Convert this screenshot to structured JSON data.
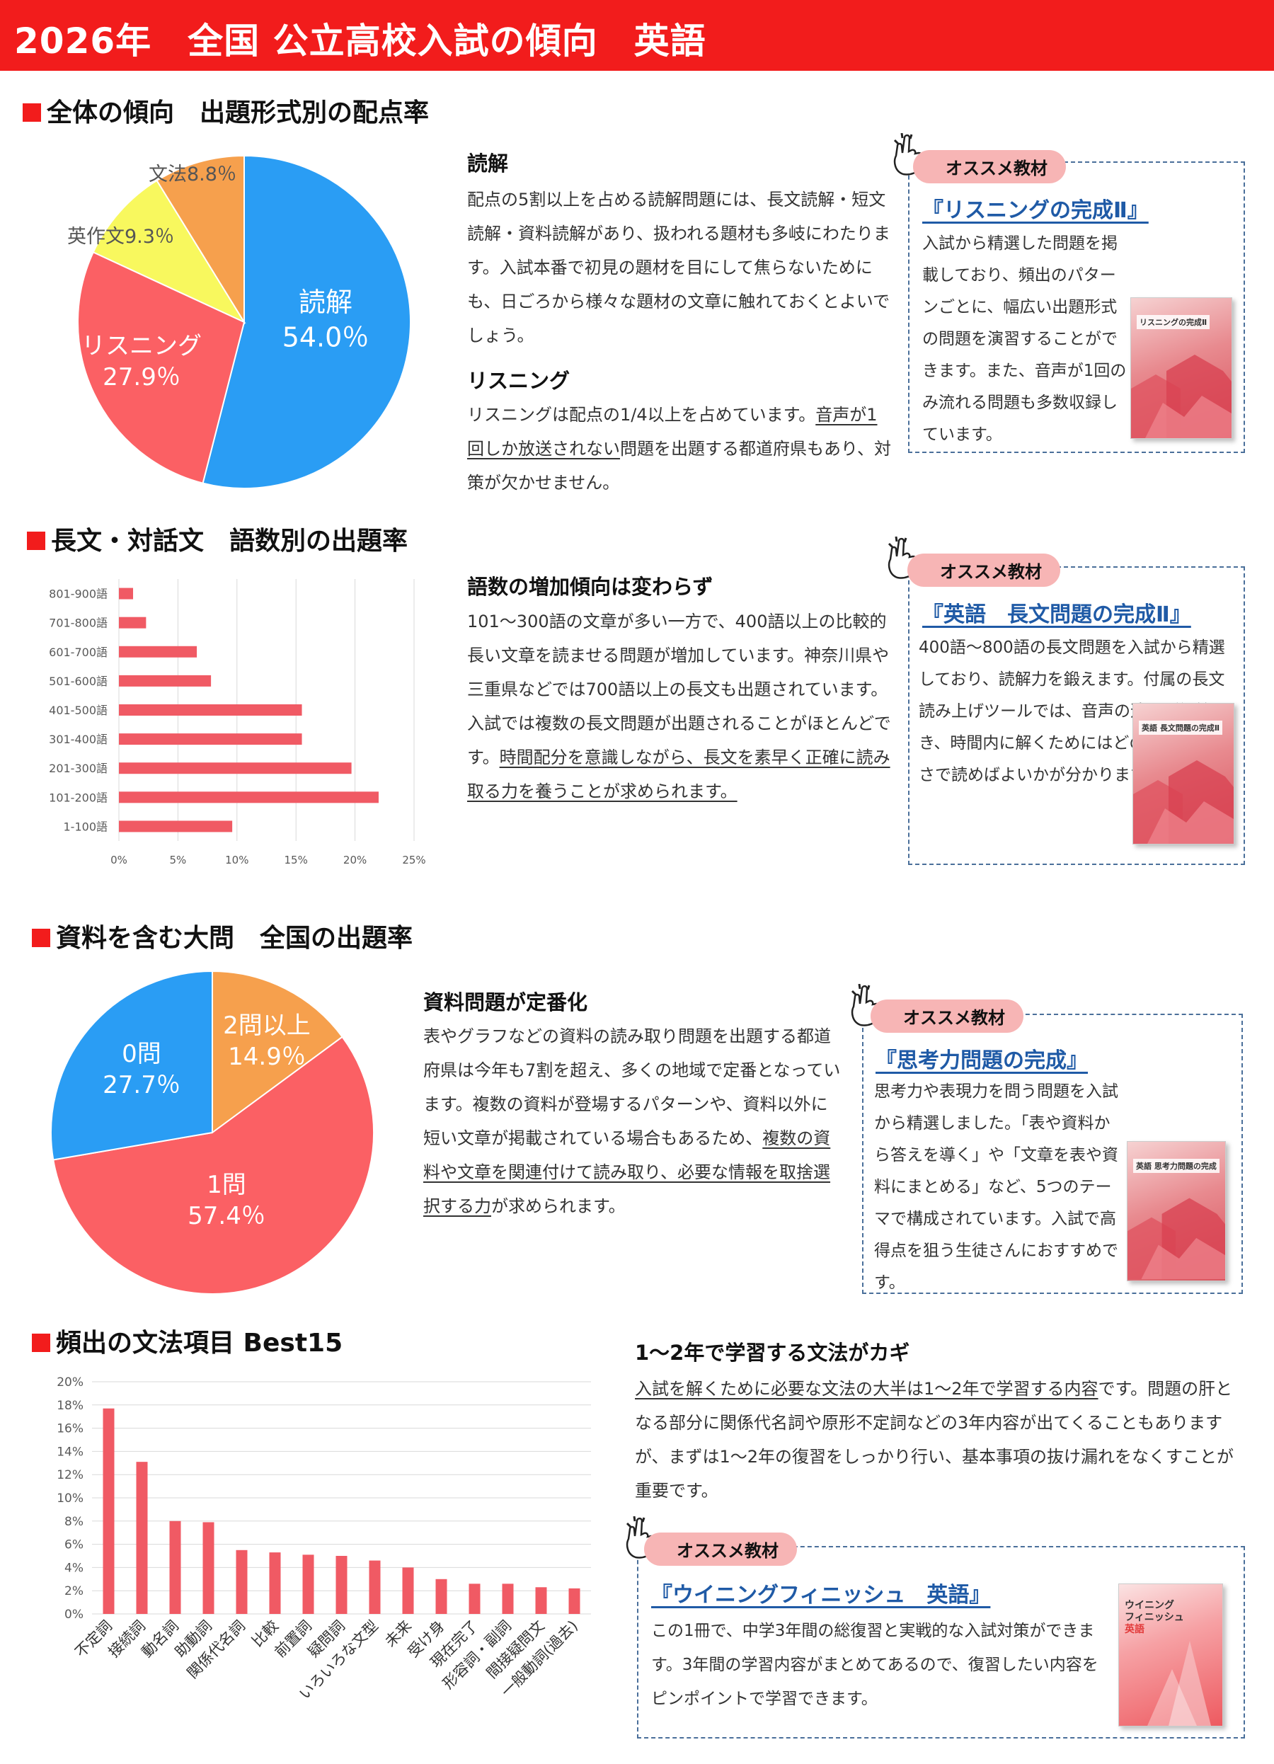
{
  "header": {
    "title": "2026年　全国 公立高校入試の傾向　英語"
  },
  "sections": {
    "overall": {
      "title": "全体の傾向　出題形式別の配点率",
      "reading_heading": "読解",
      "reading_text": "配点の5割以上を占める読解問題には、長文読解・短文読解・資料読解があり、扱われる題材も多岐にわたります。入試本番で初見の題材を目にして焦らないためにも、日ごろから様々な題材の文章に触れておくとよいでしょう。",
      "listening_heading": "リスニング",
      "listening_text_1": "リスニングは配点の1/4以上を占めています。",
      "listening_text_underline": "音声が1回しか放送されない",
      "listening_text_2": "問題を出題する都道府県もあり、対策が欠かせません。",
      "recommend": {
        "tab": "オススメ教材",
        "book": "『リスニングの完成Ⅱ』",
        "text": "入試から精選した問題を掲載しており、頻出のパターンごとに、幅広い出題形式の問題を演習することができます。また、音声が1回のみ流れる問題も多数収録しています。",
        "cover_title": "リスニングの完成Ⅱ"
      }
    },
    "wordcount": {
      "title": "長文・対話文　語数別の出題率",
      "heading": "語数の増加傾向は変わらず",
      "text_1": "101～300語の文章が多い一方で、400語以上の比較的長い文章を読ませる問題が増加しています。神奈川県や三重県などでは700語以上の長文も出題されています。入試では複数の長文問題が出題されることがほとんどです。",
      "text_underline": "時間配分を意識しながら、長文を素早く正確に読み取る力を養うことが求められます。",
      "recommend": {
        "tab": "オススメ教材",
        "book": "『英語　長文問題の完成Ⅱ』",
        "text": "400語～800語の長文問題を入試から精選しており、読解力を鍛えます。付属の長文読み上げツールでは、音声の速さが調節でき、時間内に解くためにはどのくらいの速さで読めばよいかが分かります。",
        "cover_title": "英語 長文問題の完成Ⅱ"
      }
    },
    "materials": {
      "title": "資料を含む大問　全国の出題率",
      "heading": "資料問題が定番化",
      "text_1": "表やグラフなどの資料の読み取り問題を出題する都道府県は今年も7割を超え、多くの地域で定番となっています。複数の資料が登場するパターンや、資料以外に短い文章が掲載されている場合もあるため、",
      "text_underline": "複数の資料や文章を関連付けて読み取り、必要な情報を取捨選択する力",
      "text_2": "が求められます。",
      "recommend": {
        "tab": "オススメ教材",
        "book": "『思考力問題の完成』",
        "text": "思考力や表現力を問う問題を入試から精選しました。「表や資料から答えを導く」や「文章を表や資料にまとめる」など、5つのテーマで構成されています。入試で高得点を狙う生徒さんにおすすめです。",
        "cover_title": "英語 思考力問題の完成"
      }
    },
    "grammar": {
      "title": "頻出の文法項目 Best15",
      "heading": "1～2年で学習する文法がカギ",
      "text_underline": "入試を解くために必要な文法の大半は1～2年で学習する内容",
      "text_1": "です。問題の肝となる部分に関係代名詞や原形不定詞などの3年内容が出てくることもありますが、まずは1～2年の復習をしっかり行い、基本事項の抜け漏れをなくすことが重要です。",
      "recommend": {
        "tab": "オススメ教材",
        "book": "『ウイニングフィニッシュ　英語』",
        "text": "この1冊で、中学3年間の総復習と実戦的な入試対策ができます。3年間の学習内容がまとめてあるので、復習したい内容をピンポイントで学習できます。",
        "cover_title_1": "ウイニング",
        "cover_title_2": "フィニッシュ",
        "cover_title_3": "英語"
      }
    }
  },
  "chart_data": [
    {
      "type": "pie",
      "labels": [
        "読解",
        "リスニング",
        "英作文",
        "文法"
      ],
      "values": [
        54.0,
        27.9,
        9.3,
        8.8
      ],
      "value_labels": [
        "54.0％",
        "27.9％",
        "9.3％",
        "8.8％"
      ],
      "colors": [
        "#2a9df4",
        "#fb6064",
        "#f8f85e",
        "#f6a04d"
      ]
    },
    {
      "type": "bar",
      "orientation": "horizontal",
      "categories": [
        "801-900語",
        "701-800語",
        "601-700語",
        "501-600語",
        "401-500語",
        "301-400語",
        "201-300語",
        "101-200語",
        "1-100語"
      ],
      "values": [
        1.2,
        2.3,
        6.6,
        7.8,
        15.5,
        15.5,
        19.7,
        22.0,
        9.6
      ],
      "xlim": [
        0,
        25
      ],
      "ticks": [
        "0%",
        "5%",
        "10%",
        "15%",
        "20%",
        "25%"
      ],
      "color": "#f05a64"
    },
    {
      "type": "pie",
      "labels": [
        "2問以上",
        "1問",
        "0問"
      ],
      "values": [
        14.9,
        57.4,
        27.7
      ],
      "value_labels": [
        "14.9％",
        "57.4％",
        "27.7％"
      ],
      "colors": [
        "#f6a04d",
        "#fb6064",
        "#2a9df4"
      ]
    },
    {
      "type": "bar",
      "orientation": "vertical",
      "categories": [
        "不定詞",
        "接続詞",
        "動名詞",
        "助動詞",
        "関係代名詞",
        "比較",
        "前置詞",
        "疑問詞",
        "いろいろな文型",
        "未来",
        "受け身",
        "現在完了",
        "形容詞・副詞",
        "間接疑問文",
        "一般動詞(過去)"
      ],
      "values": [
        17.7,
        13.1,
        8.0,
        7.9,
        5.5,
        5.3,
        5.1,
        5.0,
        4.6,
        4.0,
        3.0,
        2.6,
        2.6,
        2.3,
        2.2
      ],
      "ylim": [
        0,
        20
      ],
      "ticks": [
        "0%",
        "2%",
        "4%",
        "6%",
        "8%",
        "10%",
        "12%",
        "14%",
        "16%",
        "18%",
        "20%"
      ],
      "color": "#f05a64"
    }
  ]
}
